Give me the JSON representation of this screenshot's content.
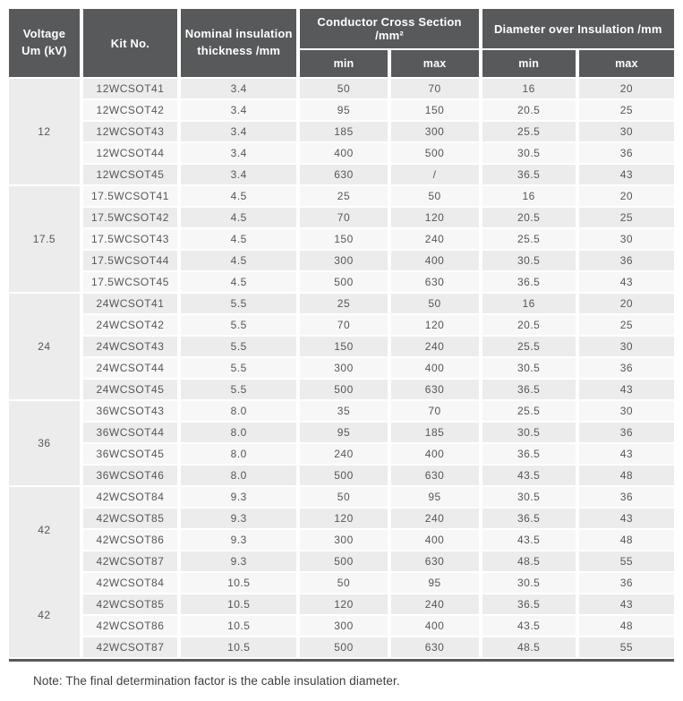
{
  "colors": {
    "header_bg": "#58595b",
    "row_gray": "#ececec",
    "row_light": "#f7f7f7",
    "bottom_border": "#58595b",
    "data_text": "#55565a"
  },
  "table": {
    "headers": {
      "voltage": "Voltage\nUm (kV)",
      "kit": "Kit No.",
      "thickness": "Nominal insulation\nthickness /mm",
      "conductor": "Conductor Cross Section /mm²",
      "diameter": "Diameter over Insulation /mm",
      "min": "min",
      "max": "max"
    },
    "groups": [
      {
        "voltage": "12",
        "rows": [
          [
            "12WCSOT41",
            "3.4",
            "50",
            "70",
            "16",
            "20"
          ],
          [
            "12WCSOT42",
            "3.4",
            "95",
            "150",
            "20.5",
            "25"
          ],
          [
            "12WCSOT43",
            "3.4",
            "185",
            "300",
            "25.5",
            "30"
          ],
          [
            "12WCSOT44",
            "3.4",
            "400",
            "500",
            "30.5",
            "36"
          ],
          [
            "12WCSOT45",
            "3.4",
            "630",
            "/",
            "36.5",
            "43"
          ]
        ]
      },
      {
        "voltage": "17.5",
        "rows": [
          [
            "17.5WCSOT41",
            "4.5",
            "25",
            "50",
            "16",
            "20"
          ],
          [
            "17.5WCSOT42",
            "4.5",
            "70",
            "120",
            "20.5",
            "25"
          ],
          [
            "17.5WCSOT43",
            "4.5",
            "150",
            "240",
            "25.5",
            "30"
          ],
          [
            "17.5WCSOT44",
            "4.5",
            "300",
            "400",
            "30.5",
            "36"
          ],
          [
            "17.5WCSOT45",
            "4.5",
            "500",
            "630",
            "36.5",
            "43"
          ]
        ]
      },
      {
        "voltage": "24",
        "rows": [
          [
            "24WCSOT41",
            "5.5",
            "25",
            "50",
            "16",
            "20"
          ],
          [
            "24WCSOT42",
            "5.5",
            "70",
            "120",
            "20.5",
            "25"
          ],
          [
            "24WCSOT43",
            "5.5",
            "150",
            "240",
            "25.5",
            "30"
          ],
          [
            "24WCSOT44",
            "5.5",
            "300",
            "400",
            "30.5",
            "36"
          ],
          [
            "24WCSOT45",
            "5.5",
            "500",
            "630",
            "36.5",
            "43"
          ]
        ]
      },
      {
        "voltage": "36",
        "rows": [
          [
            "36WCSOT43",
            "8.0",
            "35",
            "70",
            "25.5",
            "30"
          ],
          [
            "36WCSOT44",
            "8.0",
            "95",
            "185",
            "30.5",
            "36"
          ],
          [
            "36WCSOT45",
            "8.0",
            "240",
            "400",
            "36.5",
            "43"
          ],
          [
            "36WCSOT46",
            "8.0",
            "500",
            "630",
            "43.5",
            "48"
          ]
        ]
      },
      {
        "voltage": "42",
        "rows": [
          [
            "42WCSOT84",
            "9.3",
            "50",
            "95",
            "30.5",
            "36"
          ],
          [
            "42WCSOT85",
            "9.3",
            "120",
            "240",
            "36.5",
            "43"
          ],
          [
            "42WCSOT86",
            "9.3",
            "300",
            "400",
            "43.5",
            "48"
          ],
          [
            "42WCSOT87",
            "9.3",
            "500",
            "630",
            "48.5",
            "55"
          ]
        ]
      },
      {
        "voltage": "42",
        "rows": [
          [
            "42WCSOT84",
            "10.5",
            "50",
            "95",
            "30.5",
            "36"
          ],
          [
            "42WCSOT85",
            "10.5",
            "120",
            "240",
            "36.5",
            "43"
          ],
          [
            "42WCSOT86",
            "10.5",
            "300",
            "400",
            "43.5",
            "48"
          ],
          [
            "42WCSOT87",
            "10.5",
            "500",
            "630",
            "48.5",
            "55"
          ]
        ]
      }
    ],
    "column_keys": [
      "kit_no",
      "thickness",
      "cross_section_min",
      "cross_section_max",
      "diameter_min",
      "diameter_max"
    ]
  },
  "note": "Note: The final determination factor is the cable insulation diameter."
}
